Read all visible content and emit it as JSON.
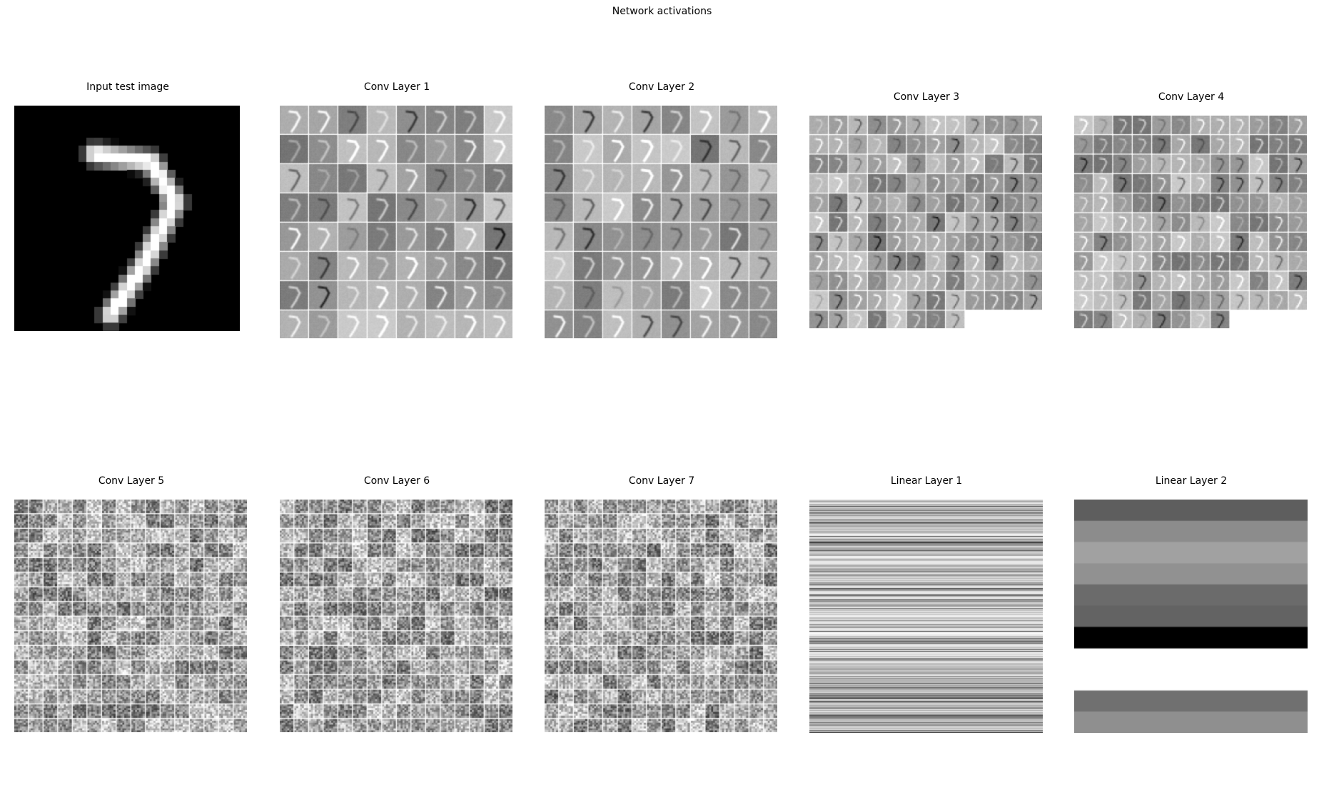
{
  "figure": {
    "suptitle": "Network activations"
  },
  "panels": [
    {
      "id": "input",
      "title": "Input test image",
      "kind": "input-digit",
      "digit": "7",
      "pixels": 28
    },
    {
      "id": "conv1",
      "title": "Conv Layer 1",
      "kind": "feature-maps",
      "columns": 8,
      "maps": 64,
      "map_pixels": 28,
      "pattern": "digit"
    },
    {
      "id": "conv2",
      "title": "Conv Layer 2",
      "kind": "feature-maps",
      "columns": 8,
      "maps": 64,
      "map_pixels": 28,
      "pattern": "digit"
    },
    {
      "id": "conv3",
      "title": "Conv Layer 3",
      "kind": "feature-maps",
      "columns": 12,
      "maps": 128,
      "map_pixels": 14,
      "pattern": "digit"
    },
    {
      "id": "conv4",
      "title": "Conv Layer 4",
      "kind": "feature-maps",
      "columns": 12,
      "maps": 128,
      "map_pixels": 14,
      "pattern": "digit"
    },
    {
      "id": "conv5",
      "title": "Conv Layer 5",
      "kind": "feature-maps",
      "columns": 16,
      "maps": 256,
      "map_pixels": 7,
      "pattern": "noise"
    },
    {
      "id": "conv6",
      "title": "Conv Layer 6",
      "kind": "feature-maps",
      "columns": 16,
      "maps": 256,
      "map_pixels": 7,
      "pattern": "noise"
    },
    {
      "id": "conv7",
      "title": "Conv Layer 7",
      "kind": "feature-maps",
      "columns": 16,
      "maps": 256,
      "map_pixels": 7,
      "pattern": "noise"
    },
    {
      "id": "linear1",
      "title": "Linear Layer 1",
      "kind": "vector-stripes",
      "units": 256
    },
    {
      "id": "linear2",
      "title": "Linear Layer 2",
      "kind": "output-bars",
      "units": 10,
      "gray_levels": [
        0.37,
        0.55,
        0.63,
        0.57,
        0.42,
        0.39,
        0.0,
        1.0,
        0.44,
        0.56
      ]
    }
  ]
}
